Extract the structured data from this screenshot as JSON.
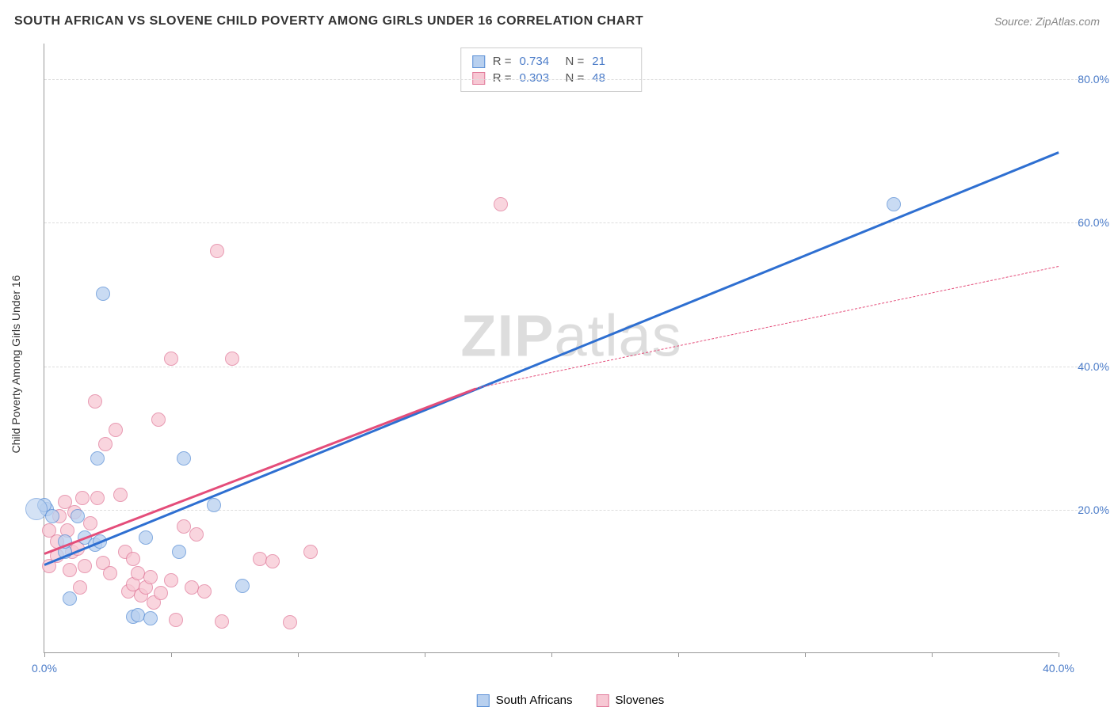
{
  "header": {
    "title": "SOUTH AFRICAN VS SLOVENE CHILD POVERTY AMONG GIRLS UNDER 16 CORRELATION CHART",
    "source_prefix": "Source: ",
    "source_name": "ZipAtlas.com"
  },
  "axes": {
    "y_label": "Child Poverty Among Girls Under 16",
    "x_min": 0,
    "x_max": 40,
    "y_min": 0,
    "y_max": 85,
    "y_ticks": [
      20,
      40,
      60,
      80
    ],
    "y_tick_labels": [
      "20.0%",
      "40.0%",
      "60.0%",
      "80.0%"
    ],
    "x_ticks": [
      0,
      5,
      10,
      15,
      20,
      25,
      30,
      35,
      40
    ],
    "x_tick_labels": {
      "0": "0.0%",
      "40": "40.0%"
    }
  },
  "colors": {
    "series_a_fill": "#b8d0ef",
    "series_a_stroke": "#5a8fd6",
    "series_b_fill": "#f7c8d4",
    "series_b_stroke": "#e17a9a",
    "line_a": "#2e6fd1",
    "line_b": "#e44d7a",
    "grid": "#dddddd",
    "axis": "#999999",
    "tick_text": "#4a7bc8"
  },
  "stats": {
    "rows": [
      {
        "series": "a",
        "r": "0.734",
        "n": "21"
      },
      {
        "series": "b",
        "r": "0.303",
        "n": "48"
      }
    ],
    "r_label": "R =",
    "n_label": "N ="
  },
  "legend": {
    "a": "South Africans",
    "b": "Slovenes"
  },
  "watermark": {
    "zip": "ZIP",
    "atlas": "atlas"
  },
  "series_a": {
    "marker_radius": 9,
    "points": [
      [
        0.1,
        20
      ],
      [
        0.3,
        19
      ],
      [
        0.8,
        14
      ],
      [
        0.8,
        15.5
      ],
      [
        1.0,
        7.5
      ],
      [
        1.3,
        19
      ],
      [
        1.6,
        16
      ],
      [
        2.0,
        15
      ],
      [
        2.1,
        27
      ],
      [
        2.3,
        50
      ],
      [
        2.2,
        15.5
      ],
      [
        3.5,
        5
      ],
      [
        3.7,
        5.2
      ],
      [
        4.0,
        16
      ],
      [
        4.2,
        4.7
      ],
      [
        5.3,
        14
      ],
      [
        5.5,
        27
      ],
      [
        6.7,
        20.5
      ],
      [
        7.8,
        9.3
      ],
      [
        33.5,
        62.5
      ],
      [
        0.0,
        20.5
      ]
    ],
    "trend": {
      "x1": 0,
      "y1": 12.5,
      "x2": 40,
      "y2": 70
    }
  },
  "series_b": {
    "marker_radius": 9,
    "points": [
      [
        0.2,
        17
      ],
      [
        0.2,
        12
      ],
      [
        0.5,
        13.5
      ],
      [
        0.5,
        15.5
      ],
      [
        0.6,
        19
      ],
      [
        0.8,
        21
      ],
      [
        0.9,
        17
      ],
      [
        1.0,
        11.5
      ],
      [
        1.1,
        14
      ],
      [
        1.2,
        19.5
      ],
      [
        1.3,
        14.5
      ],
      [
        1.4,
        9
      ],
      [
        1.5,
        21.5
      ],
      [
        1.6,
        12
      ],
      [
        1.8,
        18
      ],
      [
        2.0,
        35
      ],
      [
        2.1,
        21.5
      ],
      [
        2.3,
        12.5
      ],
      [
        2.4,
        29
      ],
      [
        2.6,
        11
      ],
      [
        2.8,
        31
      ],
      [
        3.0,
        22
      ],
      [
        3.2,
        14
      ],
      [
        3.3,
        8.5
      ],
      [
        3.5,
        13
      ],
      [
        3.5,
        9.5
      ],
      [
        3.7,
        11
      ],
      [
        3.8,
        8
      ],
      [
        4.0,
        9
      ],
      [
        4.2,
        10.5
      ],
      [
        4.3,
        7
      ],
      [
        4.5,
        32.5
      ],
      [
        4.6,
        8.3
      ],
      [
        5.0,
        10
      ],
      [
        5.0,
        41
      ],
      [
        5.2,
        4.5
      ],
      [
        5.5,
        17.5
      ],
      [
        5.8,
        9
      ],
      [
        6.0,
        16.5
      ],
      [
        6.3,
        8.5
      ],
      [
        6.8,
        56
      ],
      [
        7.0,
        4.3
      ],
      [
        7.4,
        41
      ],
      [
        8.5,
        13
      ],
      [
        9.0,
        12.7
      ],
      [
        9.7,
        4.2
      ],
      [
        10.5,
        14
      ],
      [
        18.0,
        62.5
      ]
    ],
    "trend_solid": {
      "x1": 0,
      "y1": 14,
      "x2": 17,
      "y2": 37
    },
    "trend_dash": {
      "x1": 17,
      "y1": 37,
      "x2": 40,
      "y2": 54
    }
  }
}
